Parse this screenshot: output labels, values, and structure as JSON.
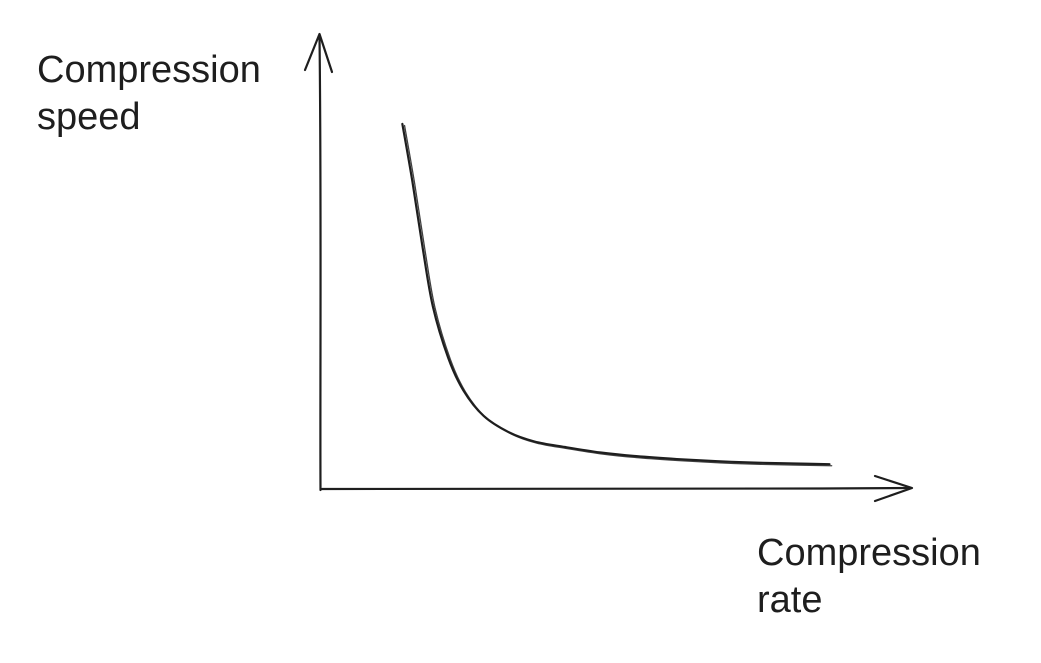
{
  "chart_data": {
    "type": "line",
    "ylabel": [
      "Compression",
      "speed"
    ],
    "xlabel": [
      "Compression",
      "rate"
    ],
    "grid": false,
    "legend": "none",
    "axis_ticks": "none",
    "line_color": "#1e1e1e",
    "series": [
      {
        "x": [
          0.16,
          0.18,
          0.2,
          0.22,
          0.25,
          0.28,
          0.32,
          0.37,
          0.42,
          0.48,
          0.55,
          0.62,
          0.7,
          0.78,
          0.86,
          0.93,
          1.0
        ],
        "y": [
          1.0,
          0.84,
          0.66,
          0.5,
          0.36,
          0.27,
          0.2,
          0.155,
          0.13,
          0.115,
          0.1,
          0.09,
          0.082,
          0.076,
          0.072,
          0.07,
          0.068
        ]
      }
    ],
    "xlim": [
      0,
      1.18
    ],
    "ylim": [
      0,
      1.26
    ]
  }
}
